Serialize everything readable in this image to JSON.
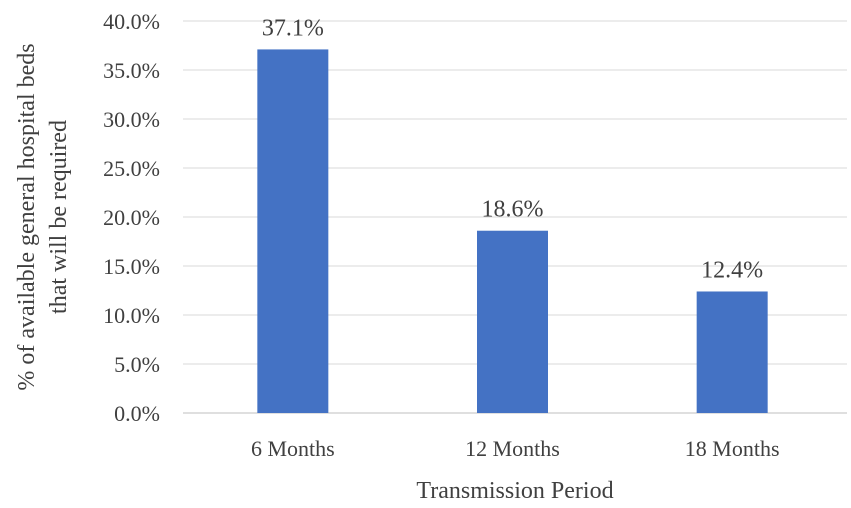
{
  "chart_data": {
    "type": "bar",
    "title": "",
    "xlabel": "Transmission Period",
    "ylabel_lines": [
      "% of available general hospital beds",
      "that will be required"
    ],
    "categories": [
      "6 Months",
      "12 Months",
      "18 Months"
    ],
    "values": [
      37.1,
      18.6,
      12.4
    ],
    "data_labels": [
      "37.1%",
      "18.6%",
      "12.4%"
    ],
    "ylim": [
      0,
      40
    ],
    "yticks": [
      0,
      5,
      10,
      15,
      20,
      25,
      30,
      35,
      40
    ],
    "ytick_labels": [
      "0.0%",
      "5.0%",
      "10.0%",
      "15.0%",
      "20.0%",
      "25.0%",
      "30.0%",
      "35.0%",
      "40.0%"
    ],
    "grid": true,
    "legend": "none",
    "bar_color": "#4472C4"
  }
}
